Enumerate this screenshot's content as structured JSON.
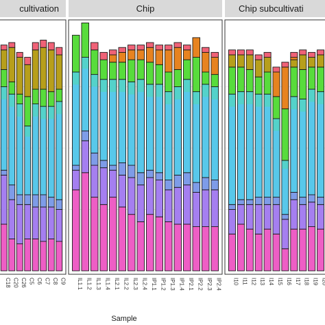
{
  "chart_data": {
    "type": "bar",
    "stacked": true,
    "xlabel": "Sample",
    "ylabel": "",
    "ylim": [
      0,
      1
    ],
    "grid": true,
    "legend": "none",
    "segment_order_bottom_to_top": [
      "magenta",
      "violet",
      "periwinkle",
      "sky",
      "green",
      "olive",
      "orange",
      "pink"
    ],
    "colors": {
      "magenta": "#ee5ec5",
      "violet": "#a57ff0",
      "periwinkle": "#7e9ce8",
      "sky": "#58c8ea",
      "teal": "#52d8b4",
      "green": "#58dc3c",
      "olive": "#b79f1b",
      "orange": "#e78320",
      "pink": "#f06277"
    },
    "panels": [
      {
        "title": "cultivation",
        "categories": [
          "C18",
          "C20",
          "C26",
          "C5",
          "C6",
          "C7",
          "C8",
          "C9"
        ],
        "bars": [
          {
            "magenta": 0.19,
            "violet": 0.2,
            "periwinkle": 0.02,
            "sky": 0.34,
            "green": 0.07,
            "olive": 0.08,
            "pink": 0.02
          },
          {
            "magenta": 0.13,
            "violet": 0.16,
            "periwinkle": 0.06,
            "sky": 0.37,
            "green": 0.05,
            "olive": 0.14,
            "pink": 0.02
          },
          {
            "magenta": 0.11,
            "violet": 0.16,
            "periwinkle": 0.04,
            "sky": 0.37,
            "green": 0.04,
            "olive": 0.15,
            "pink": 0.02
          },
          {
            "magenta": 0.13,
            "violet": 0.14,
            "periwinkle": 0.04,
            "sky": 0.28,
            "green": 0.12,
            "olive": 0.13,
            "pink": 0.03
          },
          {
            "magenta": 0.13,
            "violet": 0.13,
            "periwinkle": 0.05,
            "sky": 0.37,
            "green": 0.06,
            "olive": 0.16,
            "pink": 0.03
          },
          {
            "magenta": 0.12,
            "violet": 0.14,
            "periwinkle": 0.05,
            "sky": 0.36,
            "green": 0.07,
            "olive": 0.17,
            "pink": 0.03
          },
          {
            "magenta": 0.13,
            "violet": 0.13,
            "periwinkle": 0.04,
            "sky": 0.37,
            "green": 0.06,
            "olive": 0.17,
            "pink": 0.03
          },
          {
            "magenta": 0.12,
            "violet": 0.13,
            "periwinkle": 0.04,
            "sky": 0.4,
            "green": 0.05,
            "olive": 0.14,
            "pink": 0.03
          }
        ]
      },
      {
        "title": "Chip",
        "categories": [
          "IL1.1",
          "IL1.2",
          "IL1.3",
          "IL1.4",
          "IL2.1",
          "IL2.2",
          "IL2.3",
          "IL2.4",
          "IP1.1",
          "IP1.2",
          "IP1.3",
          "IP1.4",
          "IP2.1",
          "IP2.2",
          "IP2.3",
          "IP2.4"
        ],
        "bars": [
          {
            "magenta": 0.33,
            "violet": 0.08,
            "periwinkle": 0.02,
            "sky": 0.38,
            "green": 0.15
          },
          {
            "magenta": 0.4,
            "violet": 0.13,
            "periwinkle": 0.04,
            "sky": 0.3,
            "green": 0.14
          },
          {
            "magenta": 0.3,
            "violet": 0.13,
            "periwinkle": 0.05,
            "sky": 0.32,
            "green": 0.1,
            "pink": 0.03
          },
          {
            "magenta": 0.27,
            "violet": 0.15,
            "periwinkle": 0.03,
            "sky": 0.33,
            "green": 0.08,
            "pink": 0.03
          },
          {
            "magenta": 0.3,
            "violet": 0.11,
            "periwinkle": 0.02,
            "sky": 0.35,
            "green": 0.07,
            "orange": 0.03,
            "pink": 0.02
          },
          {
            "magenta": 0.26,
            "violet": 0.13,
            "periwinkle": 0.05,
            "sky": 0.34,
            "green": 0.07,
            "orange": 0.04,
            "pink": 0.02
          },
          {
            "magenta": 0.23,
            "violet": 0.15,
            "periwinkle": 0.05,
            "sky": 0.34,
            "green": 0.09,
            "orange": 0.04,
            "pink": 0.02
          },
          {
            "magenta": 0.2,
            "violet": 0.15,
            "periwinkle": 0.05,
            "sky": 0.38,
            "green": 0.08,
            "orange": 0.04,
            "pink": 0.02
          },
          {
            "magenta": 0.23,
            "violet": 0.15,
            "periwinkle": 0.03,
            "sky": 0.35,
            "green": 0.09,
            "orange": 0.06,
            "pink": 0.02
          },
          {
            "magenta": 0.22,
            "violet": 0.15,
            "periwinkle": 0.03,
            "sky": 0.36,
            "green": 0.08,
            "orange": 0.06,
            "pink": 0.02
          },
          {
            "magenta": 0.2,
            "violet": 0.13,
            "periwinkle": 0.04,
            "sky": 0.36,
            "green": 0.08,
            "orange": 0.09,
            "pink": 0.02
          },
          {
            "magenta": 0.19,
            "violet": 0.15,
            "periwinkle": 0.05,
            "sky": 0.36,
            "green": 0.07,
            "orange": 0.09,
            "pink": 0.02
          },
          {
            "magenta": 0.19,
            "violet": 0.16,
            "periwinkle": 0.05,
            "sky": 0.38,
            "green": 0.08,
            "orange": 0.04,
            "pink": 0.02
          },
          {
            "magenta": 0.18,
            "violet": 0.14,
            "periwinkle": 0.04,
            "sky": 0.37,
            "green": 0.14,
            "orange": 0.08
          },
          {
            "magenta": 0.18,
            "violet": 0.15,
            "periwinkle": 0.05,
            "sky": 0.38,
            "green": 0.05,
            "orange": 0.08,
            "pink": 0.02
          },
          {
            "magenta": 0.18,
            "violet": 0.15,
            "periwinkle": 0.04,
            "sky": 0.38,
            "green": 0.05,
            "orange": 0.07,
            "pink": 0.02
          }
        ]
      },
      {
        "title": "Chip subcultivati",
        "categories": [
          "I10",
          "I11",
          "I12",
          "I13",
          "I14",
          "I15",
          "I16",
          "I17",
          "I18",
          "I19",
          "I20"
        ],
        "bars": [
          {
            "magenta": 0.15,
            "violet": 0.1,
            "periwinkle": 0.02,
            "sky": 0.45,
            "green": 0.11,
            "olive": 0.05,
            "pink": 0.02
          },
          {
            "magenta": 0.19,
            "violet": 0.08,
            "periwinkle": 0.02,
            "sky": 0.44,
            "green": 0.1,
            "olive": 0.05,
            "pink": 0.02
          },
          {
            "magenta": 0.17,
            "violet": 0.1,
            "periwinkle": 0.02,
            "sky": 0.44,
            "green": 0.09,
            "olive": 0.06,
            "pink": 0.02
          },
          {
            "magenta": 0.15,
            "violet": 0.12,
            "periwinkle": 0.03,
            "sky": 0.42,
            "green": 0.07,
            "olive": 0.07,
            "pink": 0.02
          },
          {
            "magenta": 0.17,
            "violet": 0.1,
            "periwinkle": 0.03,
            "sky": 0.42,
            "green": 0.09,
            "olive": 0.06,
            "pink": 0.02
          },
          {
            "magenta": 0.15,
            "violet": 0.12,
            "periwinkle": 0.03,
            "sky": 0.32,
            "green": 0.09,
            "orange": 0.1,
            "pink": 0.02
          },
          {
            "magenta": 0.09,
            "violet": 0.12,
            "periwinkle": 0.02,
            "sky": 0.22,
            "green": 0.21,
            "orange": 0.17,
            "pink": 0.02
          },
          {
            "magenta": 0.17,
            "violet": 0.12,
            "periwinkle": 0.03,
            "sky": 0.39,
            "green": 0.12,
            "olive": 0.03,
            "orange": 0.01,
            "pink": 0.02
          },
          {
            "magenta": 0.17,
            "violet": 0.1,
            "periwinkle": 0.03,
            "sky": 0.4,
            "green": 0.12,
            "olive": 0.06,
            "pink": 0.02
          },
          {
            "magenta": 0.18,
            "violet": 0.1,
            "periwinkle": 0.03,
            "sky": 0.43,
            "green": 0.09,
            "olive": 0.04,
            "pink": 0.02
          },
          {
            "magenta": 0.17,
            "violet": 0.1,
            "periwinkle": 0.03,
            "sky": 0.43,
            "green": 0.1,
            "olive": 0.05,
            "pink": 0.02
          }
        ]
      }
    ]
  }
}
